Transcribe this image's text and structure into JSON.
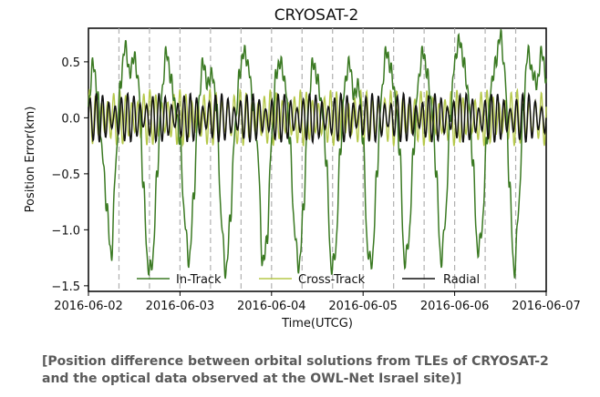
{
  "chart_data": {
    "type": "line",
    "title": "CRYOSAT-2",
    "xlabel": "Time(UTCG)",
    "ylabel": "Position Error(km)",
    "ylim": [
      -1.55,
      0.8
    ],
    "xlim": [
      0,
      5
    ],
    "x_tick_labels": [
      "2016-06-02",
      "2016-06-03",
      "2016-06-04",
      "2016-06-05",
      "2016-06-06",
      "2016-06-07"
    ],
    "x_ticks": [
      0,
      1,
      2,
      3,
      4,
      5
    ],
    "y_ticks": [
      0.5,
      0.0,
      -0.5,
      -1.0,
      -1.5
    ],
    "y_tick_labels": [
      "0.5",
      "0.0",
      "−0.5",
      "−1.0",
      "−1.5"
    ],
    "grid": "vertical dashed, about 3 per day",
    "legend_placement": "bottom",
    "colors": {
      "in_track": "#3b7a23",
      "cross_track": "#b5c84a",
      "radial": "#111111"
    },
    "series": [
      {
        "name": "In-Track",
        "x": [
          0,
          0.05,
          0.1,
          0.15,
          0.2,
          0.25,
          0.3,
          0.35,
          0.4,
          0.45,
          0.5,
          0.55,
          0.6,
          0.65,
          0.7,
          0.75,
          0.8,
          0.85,
          0.9,
          0.95,
          1.0,
          1.05,
          1.1,
          1.15,
          1.2,
          1.25,
          1.3,
          1.35,
          1.4,
          1.45,
          1.5,
          1.55,
          1.6,
          1.65,
          1.7,
          1.75,
          1.8,
          1.85,
          1.9,
          1.95,
          2.0,
          2.05,
          2.1,
          2.15,
          2.2,
          2.25,
          2.3,
          2.35,
          2.4,
          2.45,
          2.5,
          2.55,
          2.6,
          2.65,
          2.7,
          2.75,
          2.8,
          2.85,
          2.9,
          2.95,
          3.0,
          3.05,
          3.1,
          3.15,
          3.2,
          3.25,
          3.3,
          3.35,
          3.4,
          3.45,
          3.5,
          3.55,
          3.6,
          3.65,
          3.7,
          3.75,
          3.8,
          3.85,
          3.9,
          3.95,
          4.0,
          4.05,
          4.1,
          4.15,
          4.2,
          4.25,
          4.3,
          4.35,
          4.4,
          4.45,
          4.5,
          4.55,
          4.6,
          4.65,
          4.7,
          4.75,
          4.8,
          4.85,
          4.9,
          4.95,
          5.0
        ],
        "y": [
          0.1,
          0.5,
          0.2,
          -0.3,
          -0.8,
          -1.25,
          -0.4,
          0.3,
          0.65,
          0.4,
          0.55,
          0.3,
          -0.6,
          -1.35,
          -1.3,
          -0.5,
          0.2,
          0.6,
          0.35,
          0.1,
          -0.2,
          -0.9,
          -1.3,
          -0.7,
          0.1,
          0.5,
          0.3,
          0.4,
          0.1,
          -0.9,
          -1.4,
          -0.9,
          -0.1,
          0.4,
          0.6,
          0.45,
          0.1,
          -0.3,
          -1.3,
          -1.1,
          -0.2,
          0.4,
          0.5,
          0.3,
          -0.2,
          -1.0,
          -1.35,
          -0.8,
          0.1,
          0.5,
          0.35,
          0.1,
          -0.4,
          -1.35,
          -1.2,
          -0.3,
          0.3,
          0.5,
          0.2,
          0.3,
          -0.2,
          -1.2,
          -1.3,
          -0.5,
          0.2,
          0.6,
          0.45,
          0.2,
          -0.3,
          -1.3,
          -1.1,
          -0.3,
          0.3,
          0.6,
          0.4,
          0.1,
          -0.5,
          -1.3,
          -0.9,
          0.0,
          0.5,
          0.7,
          0.5,
          0.2,
          -0.4,
          -1.2,
          -1.0,
          -0.2,
          0.3,
          0.5,
          0.75,
          0.4,
          -0.6,
          -1.4,
          -0.8,
          0.1,
          0.6,
          0.4,
          0.3,
          0.6,
          0.35
        ]
      },
      {
        "name": "Cross-Track",
        "amplitude_km": 0.3
      },
      {
        "name": "Radial",
        "amplitude_km": 0.22
      }
    ]
  },
  "legend": {
    "in_track": "In-Track",
    "cross_track": "Cross-Track",
    "radial": "Radial"
  },
  "caption": {
    "line1": "[Position difference between orbital solutions from TLEs of CRYOSAT-2",
    "line2": "and the optical data observed at the OWL-Net Israel site)]"
  }
}
